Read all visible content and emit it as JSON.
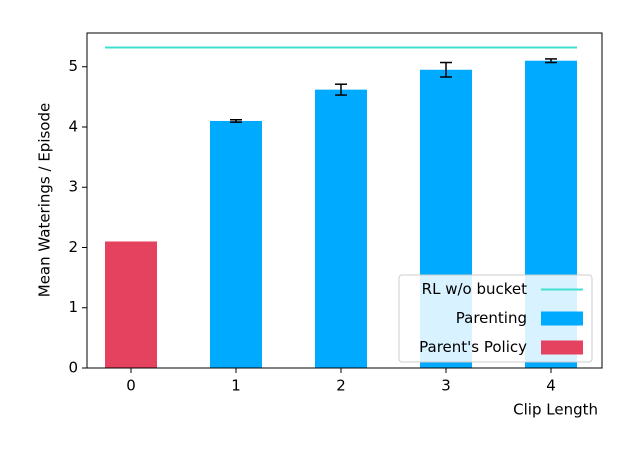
{
  "chart_data": {
    "type": "bar",
    "xlabel": "Clip Length",
    "ylabel": "Mean Waterings / Episode",
    "categories": [
      "0",
      "1",
      "2",
      "3",
      "4"
    ],
    "series": [
      {
        "name": "Parent's Policy",
        "color": "#e5425f",
        "values": [
          2.1,
          null,
          null,
          null,
          null
        ],
        "errors": [
          null,
          null,
          null,
          null,
          null
        ]
      },
      {
        "name": "Parenting",
        "color": "#00aaff",
        "values": [
          null,
          4.1,
          4.62,
          4.95,
          5.1
        ],
        "errors": [
          null,
          0.02,
          0.09,
          0.12,
          0.03
        ]
      }
    ],
    "hlines": [
      {
        "name": "RL w/o bucket",
        "color": "#40e0d0",
        "value": 5.32
      }
    ],
    "legend_order": [
      "hlines.0",
      "series.1",
      "series.0"
    ],
    "legend": "lower right",
    "ylim": [
      0,
      5.56
    ],
    "yticks": [
      0,
      1,
      2,
      3,
      4,
      5
    ]
  }
}
